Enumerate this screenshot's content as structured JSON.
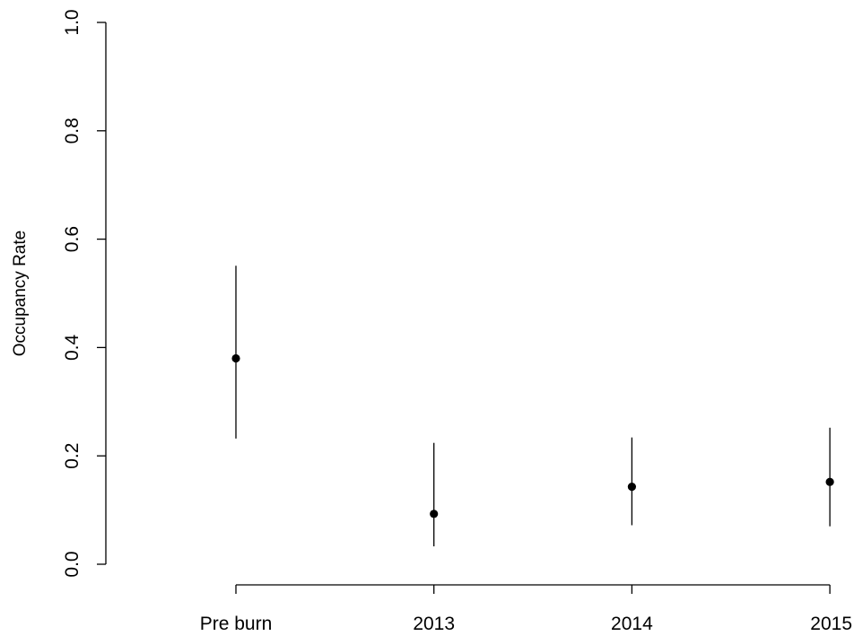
{
  "chart_data": {
    "type": "scatter",
    "title": "",
    "xlabel": "",
    "ylabel": "Occupancy Rate",
    "categories": [
      "Pre burn",
      "2013",
      "2014",
      "2015"
    ],
    "series": [
      {
        "values": [
          0.38,
          0.093,
          0.143,
          0.152
        ],
        "lower": [
          0.232,
          0.033,
          0.072,
          0.07
        ],
        "upper": [
          0.551,
          0.224,
          0.234,
          0.252
        ]
      }
    ],
    "ylim": [
      0.0,
      1.0
    ],
    "yticks": [
      "0.0",
      "0.2",
      "0.4",
      "0.6",
      "0.8",
      "1.0"
    ],
    "grid": false,
    "legend": "none",
    "colors": {
      "marker": "#000000",
      "axis": "#000000",
      "background": "#ffffff"
    }
  }
}
